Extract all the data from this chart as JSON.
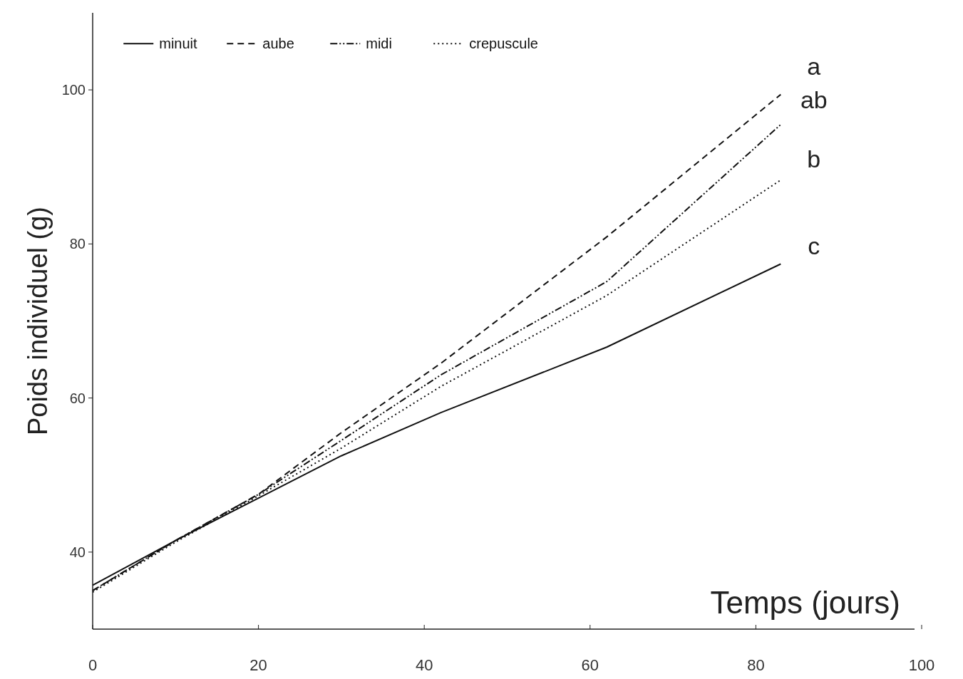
{
  "chart_data": {
    "type": "line",
    "xlabel": "Temps (jours)",
    "ylabel": "Poids individuel (g)",
    "x": [
      0,
      10,
      20,
      30,
      42,
      62,
      83
    ],
    "series": [
      {
        "name": "minuit",
        "color": "#111111",
        "line_style": "solid",
        "values": [
          35.7,
          41.5,
          47,
          52.5,
          58.1,
          66.6,
          77.4
        ]
      },
      {
        "name": "aube",
        "color": "#111111",
        "line_style": "dashed",
        "values": [
          35,
          41.5,
          47.5,
          55.5,
          64.5,
          80.9,
          99.4
        ]
      },
      {
        "name": "midi",
        "color": "#111111",
        "line_style": "dashdot",
        "values": [
          35,
          41.5,
          47.5,
          54.5,
          63,
          75.1,
          95.5
        ]
      },
      {
        "name": "crepuscule",
        "color": "#111111",
        "line_style": "dotted",
        "values": [
          34.8,
          41.3,
          47.3,
          53.5,
          61.5,
          73.3,
          88.3
        ]
      }
    ],
    "annotations": [
      "a",
      "ab",
      "b",
      "c"
    ],
    "xlim": [
      0,
      100
    ],
    "xticks": [
      0,
      20,
      40,
      60,
      80,
      100
    ],
    "ylim": [
      30,
      110
    ],
    "yticks": [
      40,
      60,
      80,
      100
    ],
    "legend": "top left",
    "grid": false,
    "marker": "none"
  }
}
